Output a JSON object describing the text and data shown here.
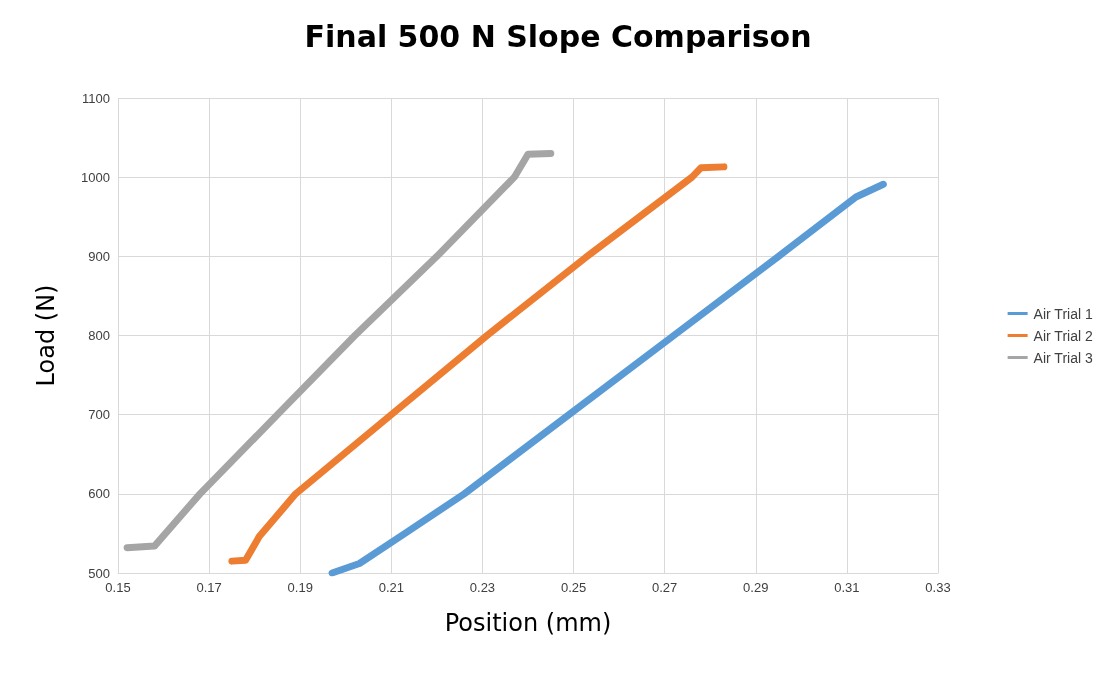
{
  "chart_data": {
    "type": "line",
    "title": "Final 500 N Slope Comparison",
    "xlabel": "Position (mm)",
    "ylabel": "Load (N)",
    "xlim": [
      0.15,
      0.33
    ],
    "xticks": [
      0.15,
      0.17,
      0.19,
      0.21,
      0.23,
      0.25,
      0.27,
      0.29,
      0.31,
      0.33
    ],
    "ylim": [
      500,
      1100
    ],
    "yticks": [
      500,
      600,
      700,
      800,
      900,
      1000,
      1100
    ],
    "grid": true,
    "legend": "right",
    "marker": "none",
    "line_style": "solid",
    "series": [
      {
        "name": "Air Trial 1",
        "color": "#5b9bd5",
        "x": [
          0.197,
          0.203,
          0.213,
          0.226,
          0.249,
          0.272,
          0.295,
          0.312,
          0.318
        ],
        "values": [
          500,
          512,
          550,
          600,
          700,
          800,
          900,
          975,
          991
        ]
      },
      {
        "name": "Air Trial 2",
        "color": "#ed7d31",
        "x": [
          0.175,
          0.178,
          0.181,
          0.189,
          0.21,
          0.231,
          0.253,
          0.276,
          0.278,
          0.283
        ],
        "values": [
          515,
          516,
          546,
          600,
          700,
          800,
          900,
          1000,
          1012,
          1013
        ]
      },
      {
        "name": "Air Trial 3",
        "color": "#a5a5a5",
        "x": [
          0.152,
          0.158,
          0.168,
          0.185,
          0.202,
          0.22,
          0.237,
          0.24,
          0.245
        ],
        "values": [
          532,
          534,
          600,
          700,
          800,
          900,
          1000,
          1029,
          1030
        ]
      }
    ]
  }
}
